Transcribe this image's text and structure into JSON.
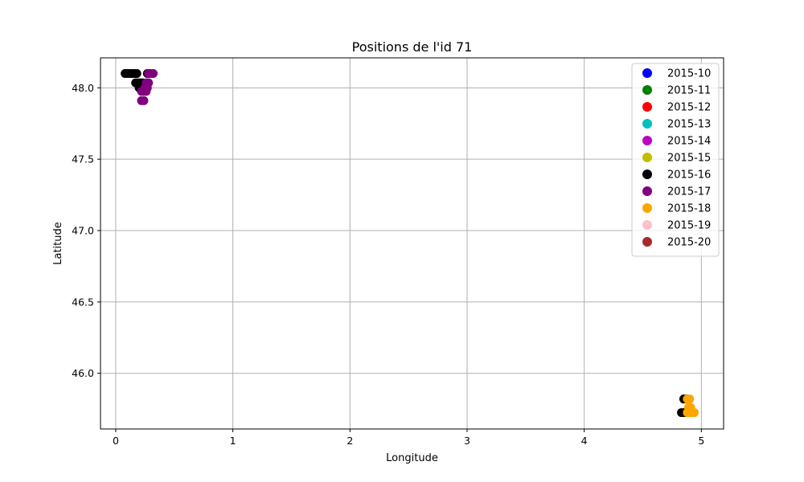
{
  "chart_data": {
    "type": "scatter",
    "title": "Positions de l'id 71",
    "xlabel": "Longitude",
    "ylabel": "Latitude",
    "xlim": [
      -0.13,
      5.19
    ],
    "ylim": [
      45.61,
      48.21
    ],
    "xticks": [
      0,
      1,
      2,
      3,
      4,
      5
    ],
    "xtick_labels": [
      "0",
      "1",
      "2",
      "3",
      "4",
      "5"
    ],
    "yticks": [
      46.0,
      46.5,
      47.0,
      47.5,
      48.0
    ],
    "ytick_labels": [
      "46.0",
      "46.5",
      "47.0",
      "47.5",
      "48.0"
    ],
    "grid": true,
    "legend_position": "top-right",
    "series": [
      {
        "name": "2015-10",
        "color": "#0000ff",
        "points": []
      },
      {
        "name": "2015-11",
        "color": "#008000",
        "points": []
      },
      {
        "name": "2015-12",
        "color": "#ff0000",
        "points": []
      },
      {
        "name": "2015-13",
        "color": "#00bfbf",
        "points": []
      },
      {
        "name": "2015-14",
        "color": "#bf00bf",
        "points": []
      },
      {
        "name": "2015-15",
        "color": "#bfbf00",
        "points": []
      },
      {
        "name": "2015-16",
        "color": "#000000",
        "points": [
          [
            0.08,
            48.1
          ],
          [
            0.1,
            48.1
          ],
          [
            0.12,
            48.1
          ],
          [
            0.14,
            48.1
          ],
          [
            0.16,
            48.1
          ],
          [
            0.18,
            48.1
          ],
          [
            0.27,
            48.1
          ],
          [
            0.29,
            48.1
          ],
          [
            0.17,
            48.035
          ],
          [
            0.19,
            48.035
          ],
          [
            0.21,
            48.035
          ],
          [
            0.23,
            48.035
          ],
          [
            0.2,
            48.0
          ],
          [
            0.22,
            48.0
          ],
          [
            4.85,
            45.82
          ],
          [
            4.87,
            45.82
          ],
          [
            4.83,
            45.725
          ],
          [
            4.85,
            45.725
          ],
          [
            4.87,
            45.725
          ]
        ]
      },
      {
        "name": "2015-17",
        "color": "#800080",
        "points": [
          [
            0.28,
            48.1
          ],
          [
            0.3,
            48.1
          ],
          [
            0.32,
            48.1
          ],
          [
            0.26,
            48.035
          ],
          [
            0.28,
            48.035
          ],
          [
            0.25,
            48.0
          ],
          [
            0.27,
            48.0
          ],
          [
            0.22,
            47.975
          ],
          [
            0.24,
            47.975
          ],
          [
            0.26,
            47.975
          ],
          [
            0.22,
            47.91
          ],
          [
            0.24,
            47.91
          ]
        ]
      },
      {
        "name": "2015-18",
        "color": "#ffa500",
        "points": [
          [
            4.88,
            45.82
          ],
          [
            4.9,
            45.82
          ],
          [
            4.89,
            45.76
          ],
          [
            4.91,
            45.76
          ],
          [
            4.88,
            45.725
          ],
          [
            4.9,
            45.725
          ],
          [
            4.92,
            45.725
          ],
          [
            4.94,
            45.725
          ]
        ]
      },
      {
        "name": "2015-19",
        "color": "#ffc0cb",
        "points": []
      },
      {
        "name": "2015-20",
        "color": "#a52a2a",
        "points": []
      }
    ]
  }
}
